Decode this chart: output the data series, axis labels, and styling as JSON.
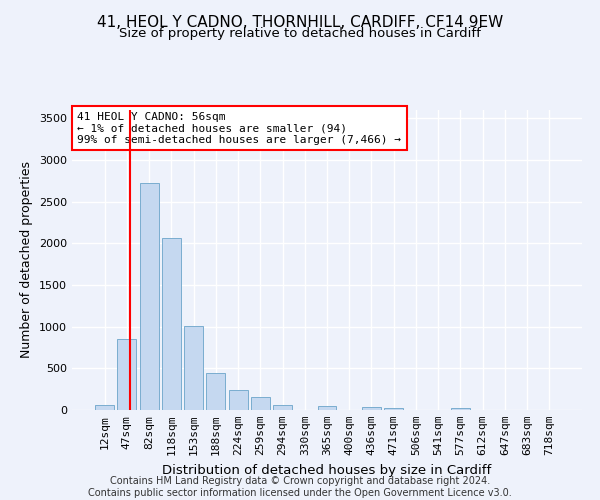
{
  "title_line1": "41, HEOL Y CADNO, THORNHILL, CARDIFF, CF14 9EW",
  "title_line2": "Size of property relative to detached houses in Cardiff",
  "xlabel": "Distribution of detached houses by size in Cardiff",
  "ylabel": "Number of detached properties",
  "categories": [
    "12sqm",
    "47sqm",
    "82sqm",
    "118sqm",
    "153sqm",
    "188sqm",
    "224sqm",
    "259sqm",
    "294sqm",
    "330sqm",
    "365sqm",
    "400sqm",
    "436sqm",
    "471sqm",
    "506sqm",
    "541sqm",
    "577sqm",
    "612sqm",
    "647sqm",
    "683sqm",
    "718sqm"
  ],
  "values": [
    55,
    850,
    2720,
    2060,
    1010,
    450,
    240,
    155,
    60,
    0,
    45,
    0,
    35,
    25,
    0,
    0,
    25,
    0,
    0,
    0,
    0
  ],
  "bar_color": "#c5d8f0",
  "bar_edge_color": "#7aadcf",
  "annotation_text": "41 HEOL Y CADNO: 56sqm\n← 1% of detached houses are smaller (94)\n99% of semi-detached houses are larger (7,466) →",
  "annotation_box_color": "white",
  "annotation_box_edge_color": "red",
  "vline_color": "red",
  "ylim": [
    0,
    3600
  ],
  "yticks": [
    0,
    500,
    1000,
    1500,
    2000,
    2500,
    3000,
    3500
  ],
  "footer_line1": "Contains HM Land Registry data © Crown copyright and database right 2024.",
  "footer_line2": "Contains public sector information licensed under the Open Government Licence v3.0.",
  "bg_color": "#eef2fb",
  "grid_color": "white",
  "title1_fontsize": 11,
  "title2_fontsize": 9.5,
  "xlabel_fontsize": 9.5,
  "ylabel_fontsize": 9,
  "tick_fontsize": 8,
  "annotation_fontsize": 8,
  "footer_fontsize": 7
}
